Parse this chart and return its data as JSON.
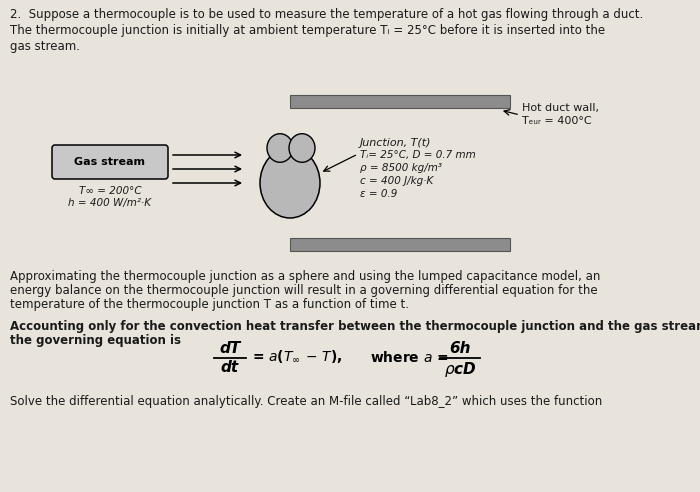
{
  "bg_color": "#e8e4dc",
  "title_line1": "2.  Suppose a thermocouple is to be used to measure the temperature of a hot gas flowing through a duct.",
  "title_line2": "The thermocouple junction is initially at ambient temperature Tᵢ = 25°C before it is inserted into the",
  "title_line3": "gas stream.",
  "hot_duct_label": "Hot duct wall,",
  "hot_duct_temp": "Tₑᵤᵣ = 400°C",
  "gas_stream_label": "Gas stream",
  "gas_props_1": "T∞ = 200°C",
  "gas_props_2": "h = 400 W/m²·K",
  "junction_label": "Junction, T(t)",
  "junction_props_1": "Tᵢ= 25°C, D = 0.7 mm",
  "junction_props_2": "ρ = 8500 kg/m³",
  "junction_props_3": "c = 400 J/kg·K",
  "junction_props_4": "ε = 0.9",
  "para1_line1": "Approximating the thermocouple junction as a sphere and using the lumped capacitance model, an",
  "para1_line2": "energy balance on the thermocouple junction will result in a governing differential equation for the",
  "para1_line3": "temperature of the thermocouple junction T as a function of time t.",
  "para2_line1": "Accounting only for the convection heat transfer between the thermocouple junction and the gas stream,",
  "para2_line2": "the governing equation is",
  "para3": "Solve the differential equation analytically. Create an M-file called “Lab8_2” which uses the function"
}
